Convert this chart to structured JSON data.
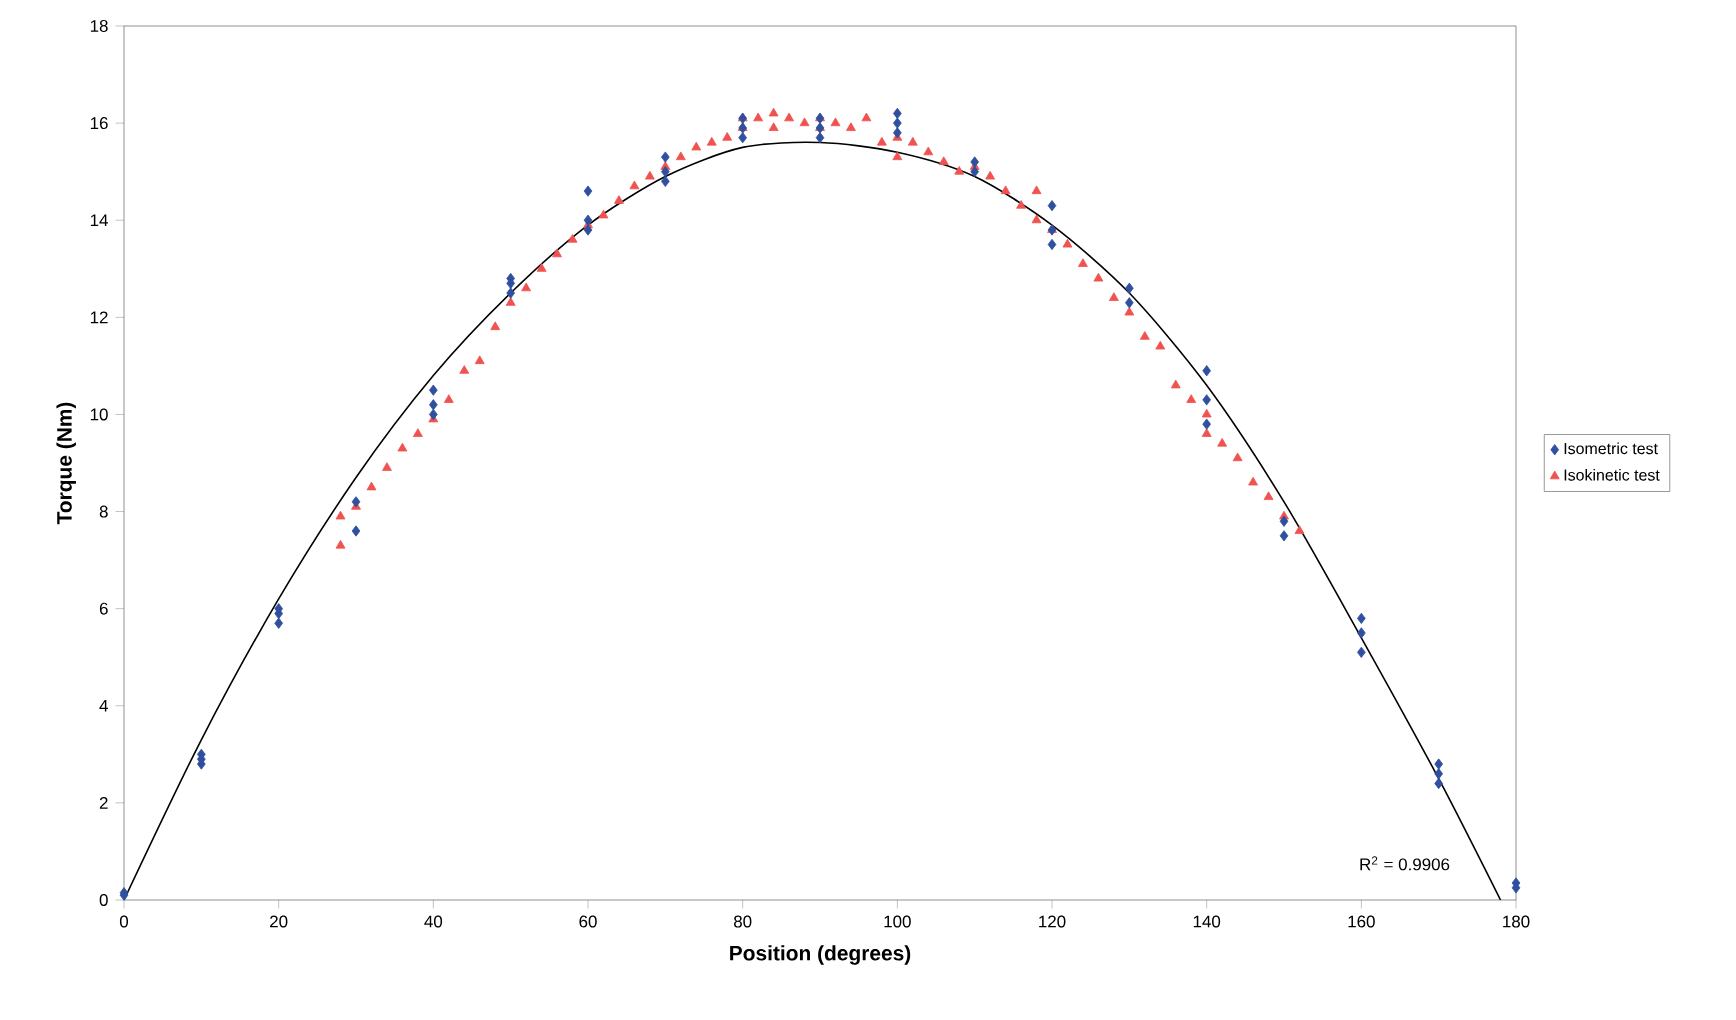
{
  "chart_data": {
    "type": "scatter",
    "xlabel": "Position (degrees)",
    "ylabel": "Torque (Nm)",
    "xlim": [
      0,
      180
    ],
    "xticks": [
      0,
      20,
      40,
      60,
      80,
      100,
      120,
      140,
      160,
      180
    ],
    "ylim": [
      0,
      18
    ],
    "yticks": [
      0,
      2,
      4,
      6,
      8,
      10,
      12,
      14,
      16,
      18
    ],
    "grid": false,
    "legend": "right",
    "annotations": [
      "R$^{2}$ = 0.9906"
    ],
    "series": [
      {
        "name": "Isometric test",
        "color": "#2f4f9f",
        "marker": "diamond",
        "x": [
          0,
          0,
          10,
          10,
          10,
          20,
          20,
          20,
          30,
          30,
          40,
          40,
          40,
          50,
          50,
          50,
          60,
          60,
          60,
          70,
          70,
          70,
          80,
          80,
          80,
          90,
          90,
          90,
          100,
          100,
          100,
          110,
          110,
          120,
          120,
          120,
          130,
          130,
          140,
          140,
          140,
          150,
          150,
          160,
          160,
          160,
          170,
          170,
          170,
          180,
          180
        ],
        "values": [
          0.1,
          0.15,
          3.0,
          2.8,
          2.9,
          5.9,
          5.7,
          6.0,
          8.2,
          7.6,
          10.5,
          10.0,
          10.2,
          12.8,
          12.5,
          12.7,
          14.6,
          14.0,
          13.8,
          15.3,
          15.0,
          14.8,
          16.1,
          15.7,
          15.9,
          16.1,
          15.7,
          15.9,
          16.2,
          15.8,
          16.0,
          15.2,
          15.0,
          14.3,
          13.5,
          13.8,
          12.6,
          12.3,
          10.9,
          10.3,
          9.8,
          7.8,
          7.5,
          5.8,
          5.1,
          5.5,
          2.8,
          2.4,
          2.6,
          0.35,
          0.25
        ]
      },
      {
        "name": "Isokinetic test",
        "color": "#ef5350",
        "marker": "triangle",
        "x": [
          28,
          28,
          30,
          32,
          34,
          36,
          38,
          40,
          42,
          44,
          46,
          48,
          50,
          52,
          54,
          56,
          58,
          60,
          62,
          64,
          66,
          68,
          70,
          72,
          74,
          76,
          78,
          80,
          80,
          82,
          84,
          84,
          86,
          88,
          90,
          90,
          92,
          94,
          96,
          98,
          100,
          100,
          102,
          104,
          106,
          108,
          110,
          112,
          114,
          116,
          118,
          118,
          120,
          122,
          124,
          126,
          128,
          130,
          132,
          134,
          136,
          138,
          140,
          140,
          142,
          144,
          146,
          148,
          150,
          152
        ],
        "values": [
          7.9,
          7.3,
          8.1,
          8.5,
          8.9,
          9.3,
          9.6,
          9.9,
          10.3,
          10.9,
          11.1,
          11.8,
          12.3,
          12.6,
          13.0,
          13.3,
          13.6,
          13.9,
          14.1,
          14.4,
          14.7,
          14.9,
          15.1,
          15.3,
          15.5,
          15.6,
          15.7,
          15.9,
          16.1,
          16.1,
          16.2,
          15.9,
          16.1,
          16.0,
          15.9,
          16.1,
          16.0,
          15.9,
          16.1,
          15.6,
          15.7,
          15.3,
          15.6,
          15.4,
          15.2,
          15.0,
          15.1,
          14.9,
          14.6,
          14.3,
          14.0,
          14.6,
          13.8,
          13.5,
          13.1,
          12.8,
          12.4,
          12.1,
          11.6,
          11.4,
          10.6,
          10.3,
          10.0,
          9.6,
          9.4,
          9.1,
          8.6,
          8.3,
          7.9,
          7.6
        ]
      },
      {
        "type": "line",
        "color": "#000000",
        "marker": "none",
        "x": [
          0,
          10,
          20,
          30,
          40,
          50,
          60,
          70,
          80,
          90,
          100,
          110,
          120,
          130,
          140,
          150,
          160,
          170,
          178
        ],
        "values": [
          0,
          3.3,
          6.2,
          8.7,
          10.8,
          12.5,
          13.9,
          14.9,
          15.5,
          15.6,
          15.4,
          14.9,
          13.9,
          12.5,
          10.6,
          8.2,
          5.4,
          2.5,
          0
        ]
      }
    ]
  }
}
